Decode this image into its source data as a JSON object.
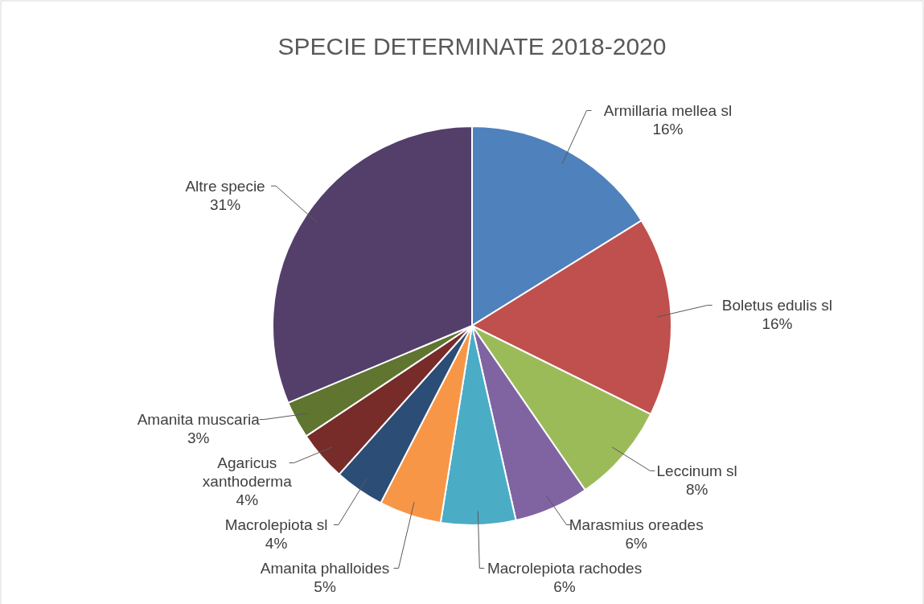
{
  "chart_data": {
    "type": "pie",
    "title": "SPECIE DETERMINATE 2018-2020",
    "categories": [
      "Armillaria mellea sl",
      "Boletus edulis sl",
      "Leccinum sl",
      "Marasmius oreades",
      "Macrolepiota rachodes",
      "Amanita phalloides",
      "Macrolepiota sl",
      "Agaricus\nxanthoderma",
      "Amanita muscaria",
      "Altre specie"
    ],
    "values": [
      16,
      16,
      8,
      6,
      6,
      5,
      4,
      4,
      3,
      31
    ],
    "value_labels": [
      "16%",
      "16%",
      "8%",
      "6%",
      "6%",
      "5%",
      "4%",
      "4%",
      "3%",
      "31%"
    ],
    "colors": [
      "#4f81bd",
      "#c0504d",
      "#9bbb59",
      "#8064a2",
      "#4bacc6",
      "#f79646",
      "#2c4d75",
      "#772c2a",
      "#5f7530",
      "#533f6a"
    ]
  }
}
